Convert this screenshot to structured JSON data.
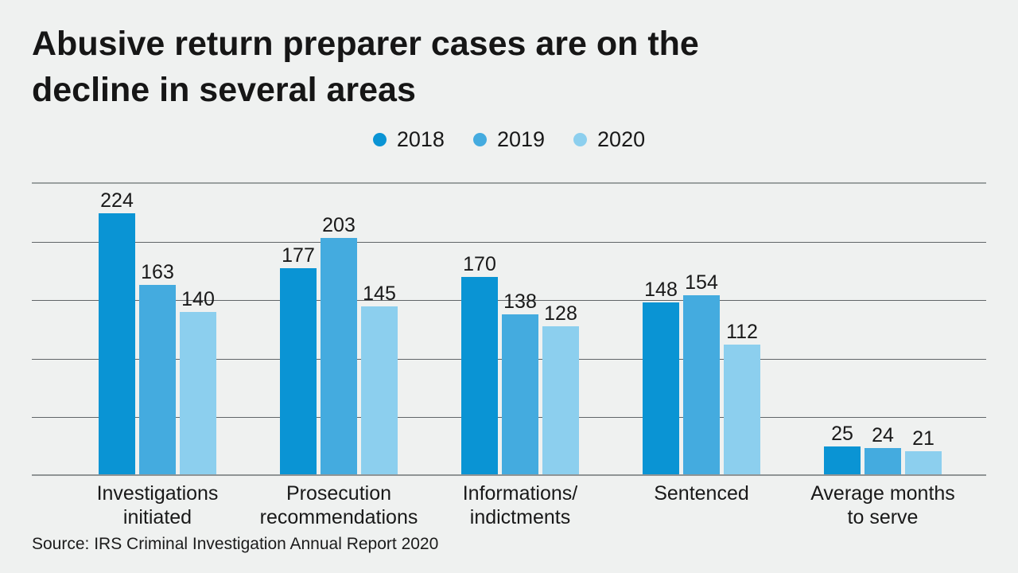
{
  "page": {
    "background": "#eff1f0",
    "title": "Abusive return preparer cases are on the\ndecline in several areas",
    "source": "Source: IRS Criminal Investigation Annual Report 2020"
  },
  "chart_data": {
    "type": "bar",
    "title": "Abusive return preparer cases are on the decline in several areas",
    "categories": [
      "Investigations\ninitiated",
      "Prosecution\nrecommendations",
      "Informations/\nindictments",
      "Sentenced",
      "Average months\nto serve"
    ],
    "series": [
      {
        "name": "2018",
        "color": "#0a94d4",
        "values": [
          224,
          177,
          170,
          148,
          25
        ]
      },
      {
        "name": "2019",
        "color": "#44abdf",
        "values": [
          163,
          203,
          138,
          154,
          24
        ]
      },
      {
        "name": "2020",
        "color": "#8ccfee",
        "values": [
          140,
          145,
          128,
          112,
          21
        ]
      }
    ],
    "ylim": [
      0,
      250
    ],
    "gridline_step": 50,
    "grid": true,
    "y_tick_labels_shown": false,
    "value_labels": true,
    "legend_position": "top-center",
    "xlabel": "",
    "ylabel": "",
    "source": "Source: IRS Criminal Investigation Annual Report 2020"
  }
}
